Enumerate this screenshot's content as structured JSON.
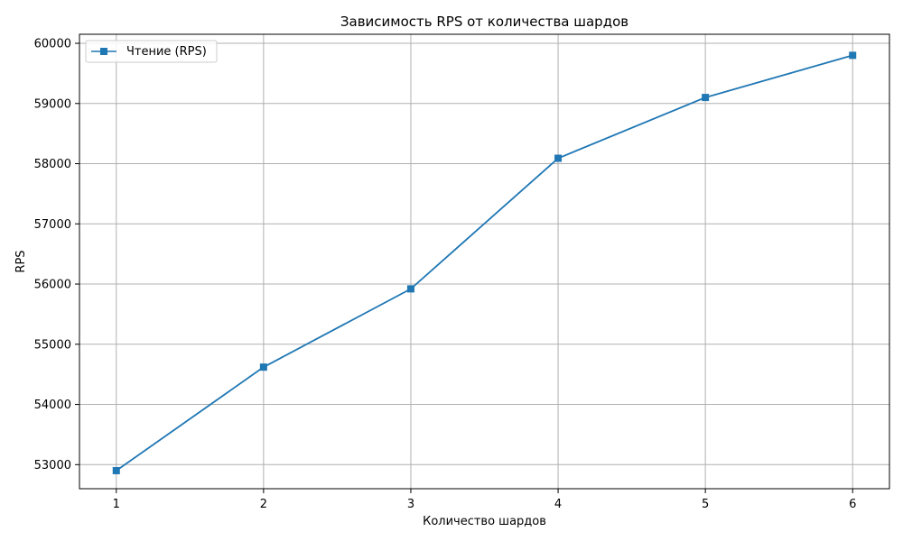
{
  "chart_data": {
    "type": "line",
    "title": "Зависимость RPS от количества шардов",
    "xlabel": "Количество шардов",
    "ylabel": "RPS",
    "x": [
      1,
      2,
      3,
      4,
      5,
      6
    ],
    "xlim": [
      0.75,
      6.25
    ],
    "ylim": [
      52600,
      60150
    ],
    "xticks": [
      1,
      2,
      3,
      4,
      5,
      6
    ],
    "yticks": [
      53000,
      54000,
      55000,
      56000,
      57000,
      58000,
      59000,
      60000
    ],
    "grid": true,
    "legend_position": "upper-left",
    "series": [
      {
        "name": "Чтение (RPS)",
        "color": "#1f77b4",
        "marker": "square",
        "values": [
          52900,
          54620,
          55920,
          58090,
          59100,
          59800
        ]
      }
    ]
  }
}
